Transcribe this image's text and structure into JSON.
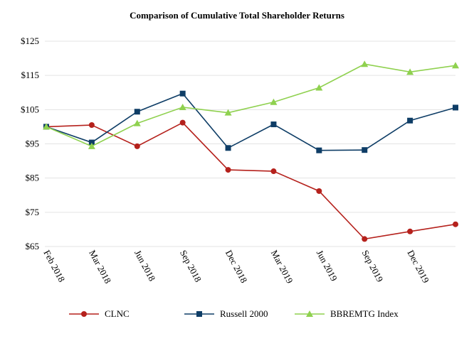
{
  "chart_data": {
    "type": "line",
    "title": "Comparison of Cumulative Total Shareholder Returns",
    "xlabel": "",
    "ylabel": "",
    "categories": [
      "Feb 2018",
      "Mar 2018",
      "Jun 2018",
      "Sep 2018",
      "Dec 2018",
      "Mar 2019",
      "Jun 2019",
      "Sep 2019",
      "Dec 2019",
      ""
    ],
    "y_ticks": [
      "$65",
      "$75",
      "$85",
      "$95",
      "$105",
      "$115",
      "$125"
    ],
    "y_tick_values": [
      65,
      75,
      85,
      95,
      105,
      115,
      125
    ],
    "ylim": [
      65,
      125
    ],
    "grid": "horizontal",
    "legend_position": "bottom",
    "series": [
      {
        "name": "CLNC",
        "color": "#b5211c",
        "marker": "circle",
        "values": [
          100,
          100.5,
          94.3,
          101.2,
          87.4,
          87.0,
          81.2,
          67.2,
          69.4,
          71.5
        ]
      },
      {
        "name": "Russell 2000",
        "color": "#0e3d66",
        "marker": "square",
        "values": [
          100,
          95.4,
          104.4,
          109.7,
          93.8,
          100.7,
          93.1,
          93.2,
          101.8,
          105.6
        ]
      },
      {
        "name": "BBREMTG Index",
        "color": "#8fd14f",
        "marker": "triangle",
        "values": [
          100,
          94.3,
          101.0,
          105.7,
          104.1,
          107.2,
          111.4,
          118.3,
          116.0,
          117.9
        ]
      }
    ]
  }
}
